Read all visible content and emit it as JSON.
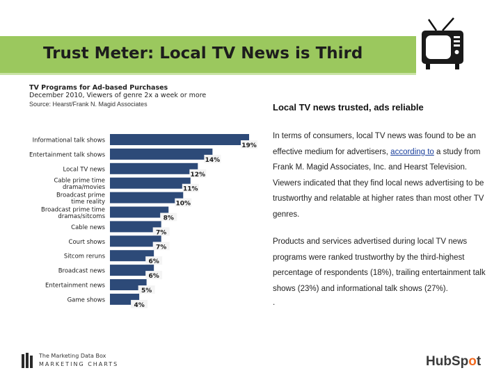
{
  "slide": {
    "title": "Trust Meter: Local TV News is Third"
  },
  "chart_data": {
    "type": "bar",
    "orientation": "horizontal",
    "title": "TV Programs for Ad-based Purchases",
    "subtitle": "December 2010, Viewers of genre 2x a week or more",
    "source": "Source: Hearst/Frank N. Magid Associates",
    "categories": [
      [
        "Informational talk shows"
      ],
      [
        "Entertainment talk shows"
      ],
      [
        "Local TV news"
      ],
      [
        "Cable prime time",
        "drama/movies"
      ],
      [
        "Broadcast prime",
        "time reality"
      ],
      [
        "Broadcast prime time",
        "dramas/sitcoms"
      ],
      [
        "Cable news"
      ],
      [
        "Court shows"
      ],
      [
        "Sitcom reruns"
      ],
      [
        "Broadcast news"
      ],
      [
        "Entertainment news"
      ],
      [
        "Game shows"
      ]
    ],
    "values": [
      19,
      14,
      12,
      11,
      10,
      8,
      7,
      7,
      6,
      6,
      5,
      4
    ],
    "value_labels": [
      "19%",
      "14%",
      "12%",
      "11%",
      "10%",
      "8%",
      "7%",
      "7%",
      "6%",
      "6%",
      "5%",
      "4%"
    ],
    "xlim": [
      0,
      19
    ],
    "bar_color": "#2d4a78",
    "label_box_color": "#f4f4f4",
    "grid": false,
    "legend": "none"
  },
  "sidebar": {
    "heading": "Local TV news trusted, ads reliable",
    "para1_before": "In terms of consumers, local TV news was found to be an effective medium for advertisers, ",
    "para1_link": "according to",
    "para1_after": " a study from Frank M. Magid Associates, Inc. and Hearst Television. Viewers indicated that they find local news advertising to be trustworthy and relatable at higher rates than most other TV genres.",
    "para2": "Products and services advertised during local TV news programs were ranked trustworthy by the third-highest percentage of respondents (18%), trailing entertainment talk shows (23%) and informational talk shows (27%).",
    "para3": "."
  },
  "branding": {
    "line1": "The Marketing Data Box",
    "line2": "MARKETING CHARTS",
    "hubspot_a": "HubSp",
    "hubspot_b": "o",
    "hubspot_c": "t"
  },
  "colors": {
    "header_green": "#9bc85e",
    "hubspot_orange": "#f26b21"
  },
  "icons": [
    "tv-icon",
    "bar-chart-logo-icon"
  ]
}
